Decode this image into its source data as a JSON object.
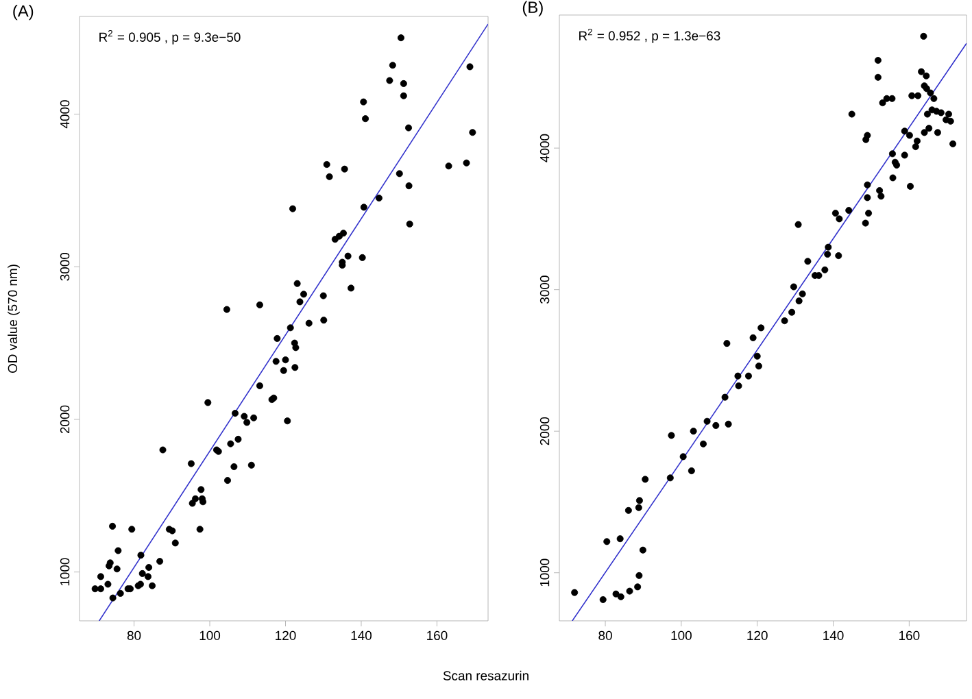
{
  "chart_data": [
    {
      "type": "scatter",
      "title": "(A)",
      "xlabel": "Scan resazurin",
      "ylabel": "OD value (570 nm)",
      "annotations": [
        "R$^{2}$ = 0.905 ,  p = 9.3e−50"
      ],
      "marker": "circle",
      "xlim": [
        65.6,
        173.5
      ],
      "ylim": [
        680,
        4640
      ],
      "xticks": [
        80,
        100,
        120,
        140,
        160
      ],
      "yticks": [
        1000,
        2000,
        3000,
        4000
      ],
      "series": [
        {
          "color": "#000000",
          "x": [
            150.5,
            148.3,
            168.7,
            147.5,
            151.2,
            151.2,
            140.6,
            141.1,
            152.5,
            169.4,
            130.9,
            167.8,
            163.1,
            131.6,
            135.6,
            150.1,
            152.6,
            144.7,
            140.7,
            121.9,
            152.8,
            133.1,
            134.2,
            135.3,
            136.5,
            135.0,
            135.0,
            140.3,
            137.3,
            123.1,
            124.8,
            123.8,
            130.0,
            104.5,
            113.2,
            126.2,
            130.1,
            121.3,
            117.8,
            122.4,
            122.7,
            117.5,
            120.0,
            119.5,
            122.5,
            113.2,
            116.4,
            116.9,
            99.5,
            106.7,
            109.1,
            109.8,
            111.6,
            120.5,
            107.5,
            105.5,
            101.8,
            102.3,
            87.6,
            95.1,
            106.4,
            111.0,
            104.7,
            97.7,
            98.0,
            98.2,
            96.2,
            95.4,
            89.3,
            90.1,
            97.4,
            79.4,
            74.3,
            90.9,
            75.8,
            81.8,
            73.7,
            73.4,
            75.5,
            83.9,
            86.8,
            82.2,
            83.7,
            71.2,
            73.1,
            69.7,
            71.2,
            78.4,
            79.0,
            81.1,
            81.7,
            84.8,
            76.4,
            74.4
          ],
          "values": [
            4500,
            4320,
            4310,
            4220,
            4200,
            4120,
            4080,
            3970,
            3910,
            3880,
            3670,
            3680,
            3660,
            3590,
            3640,
            3610,
            3530,
            3450,
            3390,
            3380,
            3280,
            3180,
            3200,
            3220,
            3070,
            3030,
            3010,
            3060,
            2860,
            2890,
            2820,
            2770,
            2810,
            2720,
            2750,
            2630,
            2650,
            2600,
            2530,
            2500,
            2470,
            2380,
            2390,
            2320,
            2340,
            2220,
            2130,
            2140,
            2110,
            2040,
            2020,
            1980,
            2010,
            1990,
            1870,
            1840,
            1800,
            1790,
            1800,
            1710,
            1690,
            1700,
            1600,
            1540,
            1480,
            1460,
            1480,
            1450,
            1280,
            1270,
            1280,
            1280,
            1300,
            1190,
            1140,
            1110,
            1060,
            1040,
            1020,
            1030,
            1070,
            990,
            970,
            970,
            920,
            890,
            890,
            890,
            890,
            910,
            920,
            910,
            860,
            830
          ]
        },
        {
          "type": "line",
          "color": "#3333cc",
          "marker": "none",
          "x": [
            70.8,
            173.5
          ],
          "values": [
            680,
            4590
          ]
        }
      ]
    },
    {
      "type": "scatter",
      "title": "(B)",
      "annotations": [
        "R$^{2}$ = 0.952 ,  p = 1.3e−63"
      ],
      "marker": "circle",
      "xlim": [
        67.9,
        175.1
      ],
      "ylim": [
        660,
        4940
      ],
      "xticks": [
        80,
        100,
        120,
        140,
        160
      ],
      "yticks": [
        1000,
        2000,
        3000,
        4000
      ],
      "series": [
        {
          "color": "#000000",
          "x": [
            163.8,
            151.8,
            163.2,
            164.5,
            151.8,
            164.0,
            164.6,
            160.7,
            162.3,
            165.6,
            166.5,
            153.0,
            154.1,
            155.5,
            144.9,
            164.8,
            166.0,
            167.2,
            168.4,
            170.4,
            169.7,
            170.9,
            158.8,
            160.1,
            164.0,
            165.2,
            167.5,
            162.1,
            161.7,
            171.5,
            149.0,
            148.6,
            155.6,
            158.8,
            156.3,
            156.7,
            155.7,
            160.3,
            149.0,
            152.2,
            152.6,
            149.0,
            144.1,
            140.6,
            149.3,
            141.6,
            148.5,
            130.8,
            138.7,
            138.5,
            141.4,
            133.3,
            135.2,
            136.2,
            137.8,
            129.6,
            131.9,
            131.0,
            129.1,
            127.2,
            121.0,
            118.9,
            112.0,
            120.0,
            120.4,
            114.9,
            117.7,
            115.1,
            111.5,
            106.8,
            109.1,
            112.4,
            103.2,
            97.4,
            105.8,
            100.5,
            102.7,
            97.1,
            90.5,
            89.0,
            88.8,
            86.1,
            83.9,
            80.4,
            89.9,
            88.9,
            88.5,
            86.4,
            71.9,
            82.8,
            84.1,
            79.4
          ],
          "values": [
            4790,
            4620,
            4540,
            4510,
            4500,
            4440,
            4420,
            4370,
            4370,
            4390,
            4350,
            4320,
            4350,
            4350,
            4240,
            4240,
            4270,
            4260,
            4250,
            4240,
            4200,
            4190,
            4120,
            4090,
            4110,
            4140,
            4110,
            4050,
            4010,
            4030,
            4090,
            4060,
            3960,
            3950,
            3900,
            3880,
            3790,
            3730,
            3740,
            3700,
            3660,
            3650,
            3560,
            3540,
            3540,
            3500,
            3470,
            3460,
            3300,
            3250,
            3240,
            3200,
            3100,
            3100,
            3140,
            3020,
            2970,
            2920,
            2840,
            2780,
            2730,
            2660,
            2620,
            2530,
            2460,
            2390,
            2390,
            2320,
            2240,
            2070,
            2040,
            2050,
            2000,
            1970,
            1910,
            1820,
            1720,
            1670,
            1660,
            1510,
            1460,
            1440,
            1240,
            1220,
            1160,
            980,
            900,
            870,
            860,
            850,
            830,
            810
          ]
        },
        {
          "type": "line",
          "color": "#3333cc",
          "marker": "none",
          "x": [
            71.3,
            175.1
          ],
          "values": [
            660,
            4740
          ]
        }
      ]
    }
  ]
}
